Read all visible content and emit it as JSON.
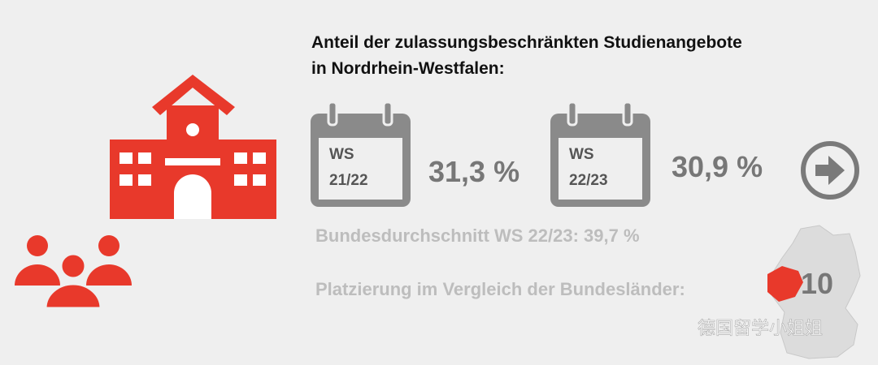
{
  "title": {
    "lines": [
      "Anteil der zulassungsbeschränkten Studienangebote",
      "in Nordrhein-Westfalen:"
    ]
  },
  "periods": [
    {
      "label": "WS",
      "semester": "21/22",
      "value": "31,3 %"
    },
    {
      "label": "WS",
      "semester": "22/23",
      "value": "30,9 %"
    }
  ],
  "national_average": "Bundesdurchschnitt WS 22/23: 39,7 %",
  "ranking": {
    "label": "Platzierung im Vergleich der Bundesländer:",
    "value": "10"
  },
  "watermark": "德国留学小姐姐"
}
